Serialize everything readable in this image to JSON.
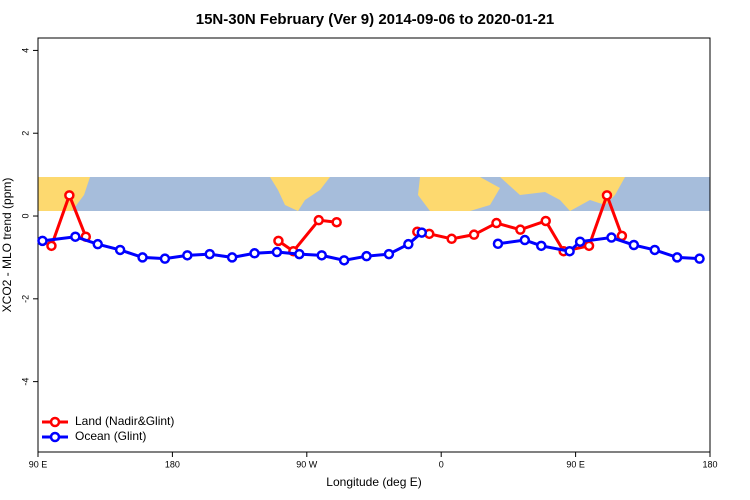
{
  "chart_data": {
    "type": "line",
    "title": "15N-30N February (Ver 9)   2014-09-06 to 2020-01-21",
    "xlabel": "Longitude (deg E)",
    "ylabel": "XCO2 - MLO trend (ppm)",
    "xlim": [
      90,
      540
    ],
    "ylim": [
      -5.7,
      4.3
    ],
    "xticks": [
      {
        "value": 90,
        "label": "90 E"
      },
      {
        "value": 180,
        "label": "180"
      },
      {
        "value": 270,
        "label": "90 W"
      },
      {
        "value": 360,
        "label": "0"
      },
      {
        "value": 450,
        "label": "90 E"
      },
      {
        "value": 540,
        "label": "180"
      }
    ],
    "yticks": [
      4,
      2,
      0,
      -2,
      -4
    ],
    "legend": "bottom-left",
    "series": [
      {
        "name": "Land (Nadir&Glint)",
        "color": "#ff0000",
        "x": [
          99,
          111,
          122,
          null,
          251,
          261,
          278,
          290,
          null,
          344,
          352,
          367,
          382,
          397,
          413,
          430,
          442,
          459,
          471,
          481
        ],
        "values": [
          -0.72,
          0.5,
          -0.5,
          null,
          -0.6,
          -0.85,
          -0.1,
          -0.15,
          null,
          -0.38,
          -0.43,
          -0.55,
          -0.45,
          -0.17,
          -0.33,
          -0.12,
          -0.85,
          -0.72,
          0.5,
          -0.48
        ]
      },
      {
        "name": "Ocean (Glint)",
        "color": "#0000ff",
        "x": [
          93,
          115,
          130,
          145,
          160,
          175,
          190,
          205,
          220,
          235,
          250,
          265,
          280,
          295,
          310,
          325,
          338,
          347,
          null,
          398,
          416,
          427,
          446,
          453,
          474,
          489,
          503,
          518,
          533
        ],
        "values": [
          -0.6,
          -0.5,
          -0.68,
          -0.82,
          -1.0,
          -1.03,
          -0.95,
          -0.92,
          -1.0,
          -0.9,
          -0.87,
          -0.92,
          -0.95,
          -1.07,
          -0.97,
          -0.92,
          -0.68,
          -0.4,
          null,
          -0.67,
          -0.58,
          -0.72,
          -0.85,
          -0.62,
          -0.52,
          -0.7,
          -0.82,
          -1.0,
          -1.03
        ]
      }
    ]
  }
}
